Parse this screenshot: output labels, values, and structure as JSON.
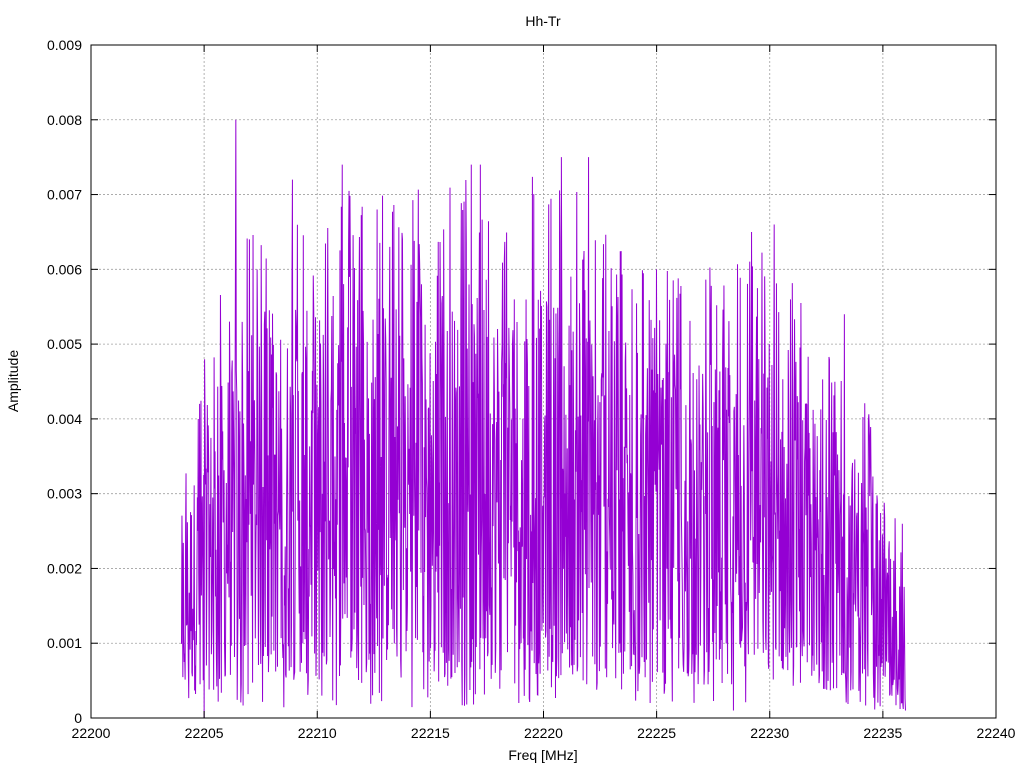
{
  "chart_data": {
    "type": "line",
    "title": "Hh-Tr",
    "xlabel": "Freq [MHz]",
    "ylabel": "Amplitude",
    "xlim": [
      22200,
      22240
    ],
    "ylim": [
      0,
      0.009
    ],
    "xticks": [
      "22200",
      "22205",
      "22210",
      "22215",
      "22220",
      "22225",
      "22230",
      "22235",
      "22240"
    ],
    "yticks": [
      "0",
      "0.001",
      "0.002",
      "0.003",
      "0.004",
      "0.005",
      "0.006",
      "0.007",
      "0.008",
      "0.009"
    ],
    "grid": true,
    "legend": "none",
    "series": [
      {
        "color": "#9400d3",
        "x_start": 22204,
        "x_end": 22236,
        "sample_count": 1600,
        "envelope_x": [
          22204,
          22206,
          22210,
          22215,
          22220,
          22225,
          22230,
          22234,
          22236
        ],
        "envelope_peak": [
          0.0035,
          0.0062,
          0.0072,
          0.0072,
          0.0075,
          0.006,
          0.0064,
          0.0045,
          0.0025
        ],
        "peaks": [
          {
            "x": 22204.8,
            "y": 0.0042
          },
          {
            "x": 22206.4,
            "y": 0.008
          },
          {
            "x": 22207.0,
            "y": 0.0064
          },
          {
            "x": 22208.9,
            "y": 0.0072
          },
          {
            "x": 22211.1,
            "y": 0.0074
          },
          {
            "x": 22213.2,
            "y": 0.0063
          },
          {
            "x": 22214.6,
            "y": 0.0058
          },
          {
            "x": 22216.8,
            "y": 0.0074
          },
          {
            "x": 22217.2,
            "y": 0.0074
          },
          {
            "x": 22220.8,
            "y": 0.0075
          },
          {
            "x": 22222.0,
            "y": 0.0075
          },
          {
            "x": 22229.2,
            "y": 0.0065
          },
          {
            "x": 22230.2,
            "y": 0.0066
          },
          {
            "x": 22225.0,
            "y": 0.006
          },
          {
            "x": 22233.3,
            "y": 0.0054
          }
        ],
        "dips": [
          {
            "x": 22205.0,
            "y": 0.0
          },
          {
            "x": 22210.2,
            "y": 0.0003
          },
          {
            "x": 22218.9,
            "y": 0.0002
          },
          {
            "x": 22228.4,
            "y": 0.0001
          },
          {
            "x": 22236.0,
            "y": 0.0001
          }
        ]
      }
    ]
  }
}
